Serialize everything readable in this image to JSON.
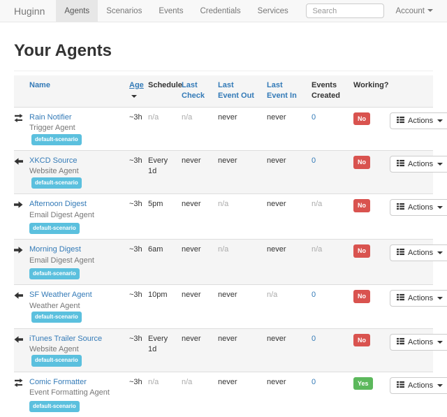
{
  "colors": {
    "link": "#337ab7",
    "scenario_badge": "#5bc0de",
    "working_no": "#d9534f",
    "working_yes": "#5cb85c",
    "navbar_bg": "#f8f8f8"
  },
  "navbar": {
    "brand": "Huginn",
    "items": [
      {
        "label": "Agents",
        "active": true
      },
      {
        "label": "Scenarios",
        "active": false
      },
      {
        "label": "Events",
        "active": false
      },
      {
        "label": "Credentials",
        "active": false
      },
      {
        "label": "Services",
        "active": false
      }
    ],
    "search_placeholder": "Search",
    "account_label": "Account"
  },
  "page": {
    "title": "Your Agents"
  },
  "table": {
    "actions_label": "Actions",
    "headers": [
      {
        "key": "name",
        "label": "Name",
        "link": true
      },
      {
        "key": "age",
        "label": "Age",
        "link": true,
        "sorted": "desc"
      },
      {
        "key": "schedule",
        "label": "Schedule",
        "link": false
      },
      {
        "key": "last_check",
        "label": "Last Check",
        "link": true
      },
      {
        "key": "last_event_out",
        "label": "Last Event Out",
        "link": true
      },
      {
        "key": "last_event_in",
        "label": "Last Event In",
        "link": true
      },
      {
        "key": "events_created",
        "label": "Events Created",
        "link": false
      },
      {
        "key": "working",
        "label": "Working?",
        "link": false
      }
    ],
    "rows": [
      {
        "icon": "transfer",
        "name": "Rain Notifier",
        "type": "Trigger Agent",
        "scenario": "default-scenario",
        "scenario_own_line": false,
        "age": "~3h",
        "schedule": {
          "text": "n/a",
          "muted": true
        },
        "last_check": {
          "text": "n/a",
          "muted": true
        },
        "last_event_out": {
          "text": "never"
        },
        "last_event_in": {
          "text": "never"
        },
        "events_created": {
          "text": "0",
          "link": true
        },
        "working": {
          "text": "No",
          "status": "no"
        }
      },
      {
        "icon": "arrow-left",
        "name": "XKCD Source",
        "type": "Website Agent",
        "scenario": "default-scenario",
        "scenario_own_line": false,
        "age": "~3h",
        "schedule": {
          "text": "Every 1d"
        },
        "last_check": {
          "text": "never"
        },
        "last_event_out": {
          "text": "never"
        },
        "last_event_in": {
          "text": "never"
        },
        "events_created": {
          "text": "0",
          "link": true
        },
        "working": {
          "text": "No",
          "status": "no"
        }
      },
      {
        "icon": "arrow-right",
        "name": "Afternoon Digest",
        "type": "Email Digest Agent",
        "scenario": "default-scenario",
        "scenario_own_line": true,
        "age": "~3h",
        "schedule": {
          "text": "5pm"
        },
        "last_check": {
          "text": "never"
        },
        "last_event_out": {
          "text": "n/a",
          "muted": true
        },
        "last_event_in": {
          "text": "never"
        },
        "events_created": {
          "text": "n/a",
          "muted": true
        },
        "working": {
          "text": "No",
          "status": "no"
        }
      },
      {
        "icon": "arrow-right",
        "name": "Morning Digest",
        "type": "Email Digest Agent",
        "scenario": "default-scenario",
        "scenario_own_line": true,
        "age": "~3h",
        "schedule": {
          "text": "6am"
        },
        "last_check": {
          "text": "never"
        },
        "last_event_out": {
          "text": "n/a",
          "muted": true
        },
        "last_event_in": {
          "text": "never"
        },
        "events_created": {
          "text": "n/a",
          "muted": true
        },
        "working": {
          "text": "No",
          "status": "no"
        }
      },
      {
        "icon": "arrow-left",
        "name": "SF Weather Agent",
        "type": "Weather Agent",
        "scenario": "default-scenario",
        "scenario_own_line": false,
        "age": "~3h",
        "schedule": {
          "text": "10pm"
        },
        "last_check": {
          "text": "never"
        },
        "last_event_out": {
          "text": "never"
        },
        "last_event_in": {
          "text": "n/a",
          "muted": true
        },
        "events_created": {
          "text": "0",
          "link": true
        },
        "working": {
          "text": "No",
          "status": "no"
        }
      },
      {
        "icon": "arrow-left",
        "name": "iTunes Trailer Source",
        "type": "Website Agent",
        "scenario": "default-scenario",
        "scenario_own_line": false,
        "age": "~3h",
        "schedule": {
          "text": "Every 1d"
        },
        "last_check": {
          "text": "never"
        },
        "last_event_out": {
          "text": "never"
        },
        "last_event_in": {
          "text": "never"
        },
        "events_created": {
          "text": "0",
          "link": true
        },
        "working": {
          "text": "No",
          "status": "no"
        }
      },
      {
        "icon": "transfer",
        "name": "Comic Formatter",
        "type": "Event Formatting Agent",
        "scenario": "default-scenario",
        "scenario_own_line": true,
        "age": "~3h",
        "schedule": {
          "text": "n/a",
          "muted": true
        },
        "last_check": {
          "text": "n/a",
          "muted": true
        },
        "last_event_out": {
          "text": "never"
        },
        "last_event_in": {
          "text": "never"
        },
        "events_created": {
          "text": "0",
          "link": true
        },
        "working": {
          "text": "Yes",
          "status": "yes"
        }
      }
    ]
  }
}
